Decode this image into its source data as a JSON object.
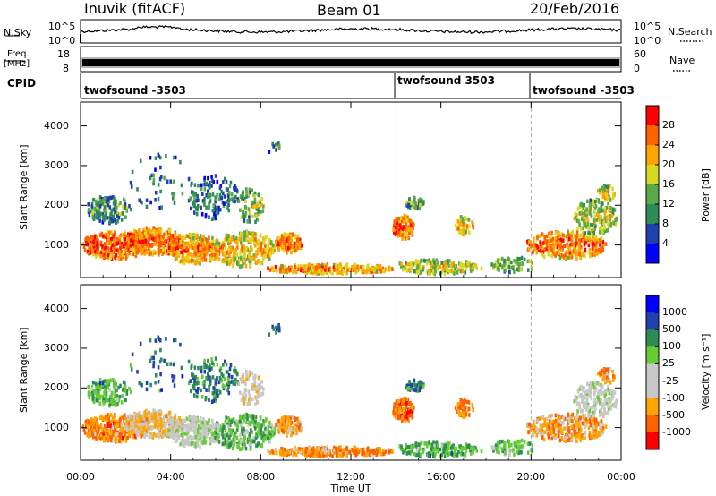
{
  "header": {
    "station": "Inuvik (fitACF)",
    "beam": "Beam 01",
    "date": "20/Feb/2016"
  },
  "top_panels": {
    "nsky_label": "N.Sky",
    "nsky_ticks": [
      "10^5",
      "10^0"
    ],
    "nsearch_label": "N.Search",
    "freq_label_1": "Freq.",
    "freq_label_2": "[MHz]",
    "freq_ticks": [
      "18",
      "8"
    ],
    "nave_label": "Nave",
    "nave_ticks": [
      "60",
      "0"
    ],
    "cpid_label": "CPID",
    "cpid_segments": [
      "twofsound -3503",
      "twofsound 3503",
      "twofsound -3503"
    ]
  },
  "colors": {
    "power": [
      "#0000ff",
      "#2040b0",
      "#2e8b57",
      "#5aaa4a",
      "#d8d820",
      "#ffa500",
      "#ff6000",
      "#ff0000"
    ],
    "velocity": [
      "#ff0000",
      "#ff6000",
      "#ffa500",
      "#c8c8c8",
      "#c8c8c8",
      "#66cc33",
      "#2e8b57",
      "#2040b0",
      "#0000ff"
    ]
  },
  "chart_data": [
    {
      "type": "heatmap",
      "name": "Power",
      "xlabel": "",
      "ylabel": "Slant Range [km]",
      "x_ticks": [
        "00:00",
        "04:00",
        "08:00",
        "12:00",
        "16:00",
        "20:00",
        "00:00"
      ],
      "y_ticks": [
        "1000",
        "2000",
        "3000",
        "4000"
      ],
      "xlim": [
        0,
        24
      ],
      "ylim": [
        180,
        4600
      ],
      "colorbar_label": "Power [dB]",
      "colorbar_ticks": [
        "4",
        "8",
        "12",
        "16",
        "20",
        "24",
        "28"
      ],
      "colorbar_range": [
        0,
        32
      ],
      "cpid_change_hours": [
        14.0,
        20.0
      ]
    },
    {
      "type": "heatmap",
      "name": "Velocity",
      "xlabel": "Time UT",
      "ylabel": "Slant Range [km]",
      "x_ticks": [
        "00:00",
        "04:00",
        "08:00",
        "12:00",
        "16:00",
        "20:00",
        "00:00"
      ],
      "y_ticks": [
        "1000",
        "2000",
        "3000",
        "4000"
      ],
      "xlim": [
        0,
        24
      ],
      "ylim": [
        180,
        4600
      ],
      "colorbar_label": "Velocity [m s⁻¹]",
      "colorbar_ticks": [
        "1000",
        "500",
        "100",
        "25",
        "-25",
        "-100",
        "-500",
        "-1000"
      ],
      "cpid_change_hours": [
        14.0,
        20.0
      ]
    }
  ]
}
